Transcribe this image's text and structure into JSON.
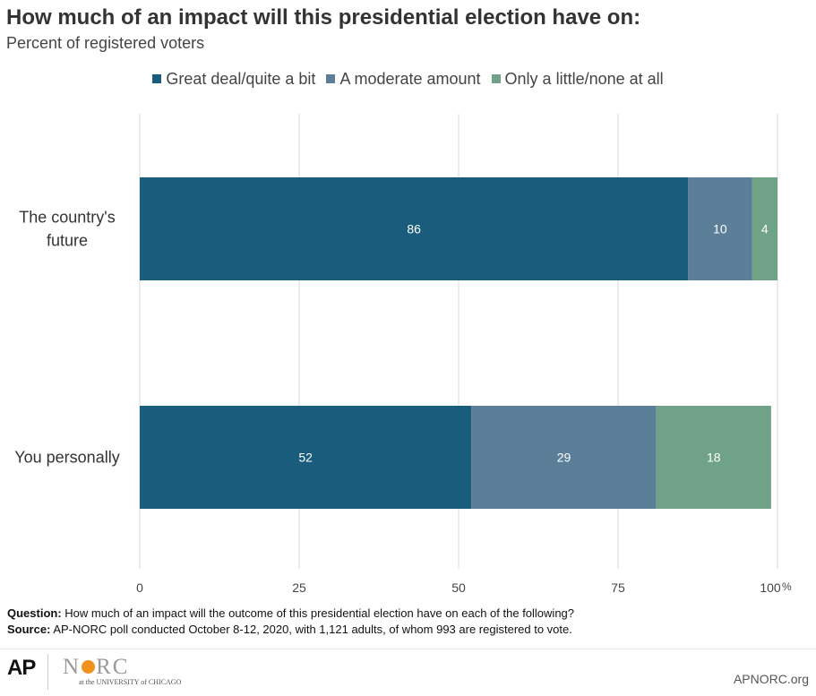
{
  "chart_data": {
    "type": "bar",
    "orientation": "horizontal",
    "stacked": true,
    "title": "How much of an impact will this presidential election have on:",
    "subtitle": "Percent of registered voters",
    "categories": [
      "The country's future",
      "You personally"
    ],
    "series": [
      {
        "name": "Great deal/quite a bit",
        "color": "#1a5c7b",
        "values": [
          86,
          52
        ]
      },
      {
        "name": "A moderate amount",
        "color": "#5b7f98",
        "values": [
          10,
          29
        ]
      },
      {
        "name": "Only a little/none at all",
        "color": "#6fa286",
        "values": [
          4,
          18
        ]
      }
    ],
    "xlim": [
      0,
      100
    ],
    "xticks": [
      0,
      25,
      50,
      75,
      100
    ],
    "tick_suffix": "%",
    "grid": true,
    "legend_position": "top"
  },
  "notes": {
    "question_label": "Question:",
    "question_text": "How much of an impact will the outcome of this presidential election have on each of the following?",
    "source_label": "Source:",
    "source_text": "AP-NORC poll conducted October 8-12, 2020, with 1,121 adults, of whom 993 are registered to vote."
  },
  "footer": {
    "ap_logo": "AP",
    "norc_before": "N",
    "norc_after": "RC",
    "norc_tagline": "at the UNIVERSITY of CHICAGO",
    "site": "APNORC.org"
  }
}
